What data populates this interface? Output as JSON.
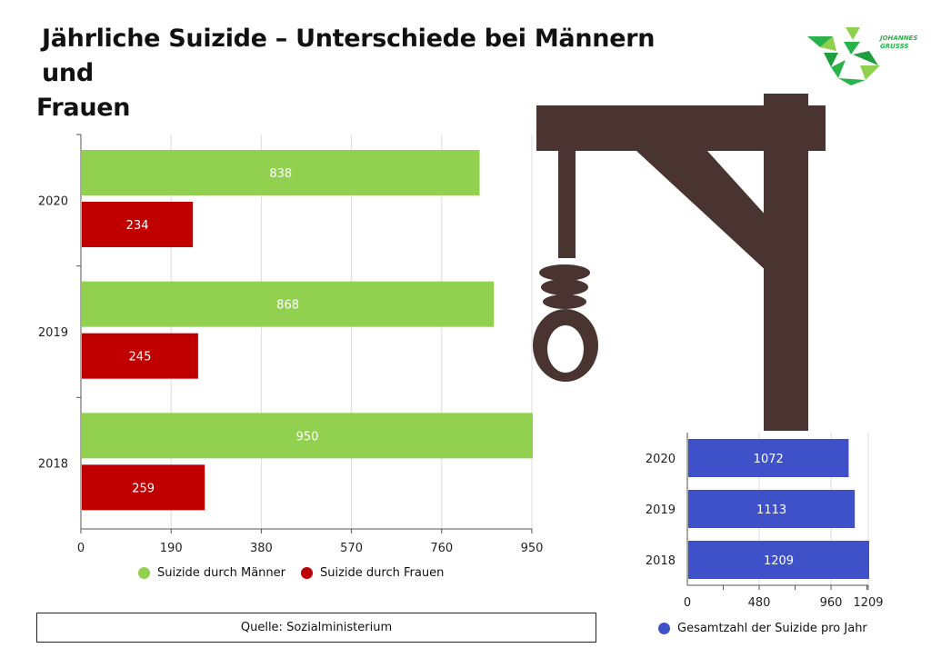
{
  "title": {
    "line1": "Jährliche Suizide – Unterschiede bei Männern und",
    "line2": "Frauen"
  },
  "logo": {
    "line1": "JOHANNES",
    "line2": "GRUSSS",
    "color": "#29b34a"
  },
  "source": "Quelle: Sozialministerium",
  "colors": {
    "men": "#92d050",
    "women": "#c00000",
    "total": "#3f51c8",
    "gallows": "#4a3432"
  },
  "chart_data": [
    {
      "type": "bar",
      "orientation": "horizontal",
      "categories": [
        "2020",
        "2019",
        "2018"
      ],
      "series": [
        {
          "name": "Suizide durch Männer",
          "values": [
            838,
            868,
            950
          ]
        },
        {
          "name": "Suizide durch Frauen",
          "values": [
            234,
            245,
            259
          ]
        }
      ],
      "xlim": [
        0,
        950
      ],
      "xticks": [
        "0",
        "190",
        "380",
        "570",
        "760",
        "950"
      ],
      "grid": true,
      "legend": "bottom"
    },
    {
      "type": "bar",
      "orientation": "horizontal",
      "categories": [
        "2020",
        "2019",
        "2018"
      ],
      "series": [
        {
          "name": "Gesamtzahl der Suizide pro Jahr",
          "values": [
            1072,
            1113,
            1209
          ]
        }
      ],
      "xlim": [
        0,
        1209
      ],
      "xticks": [
        "0",
        "480",
        "960",
        "1209"
      ],
      "grid": true,
      "legend": "bottom"
    }
  ]
}
